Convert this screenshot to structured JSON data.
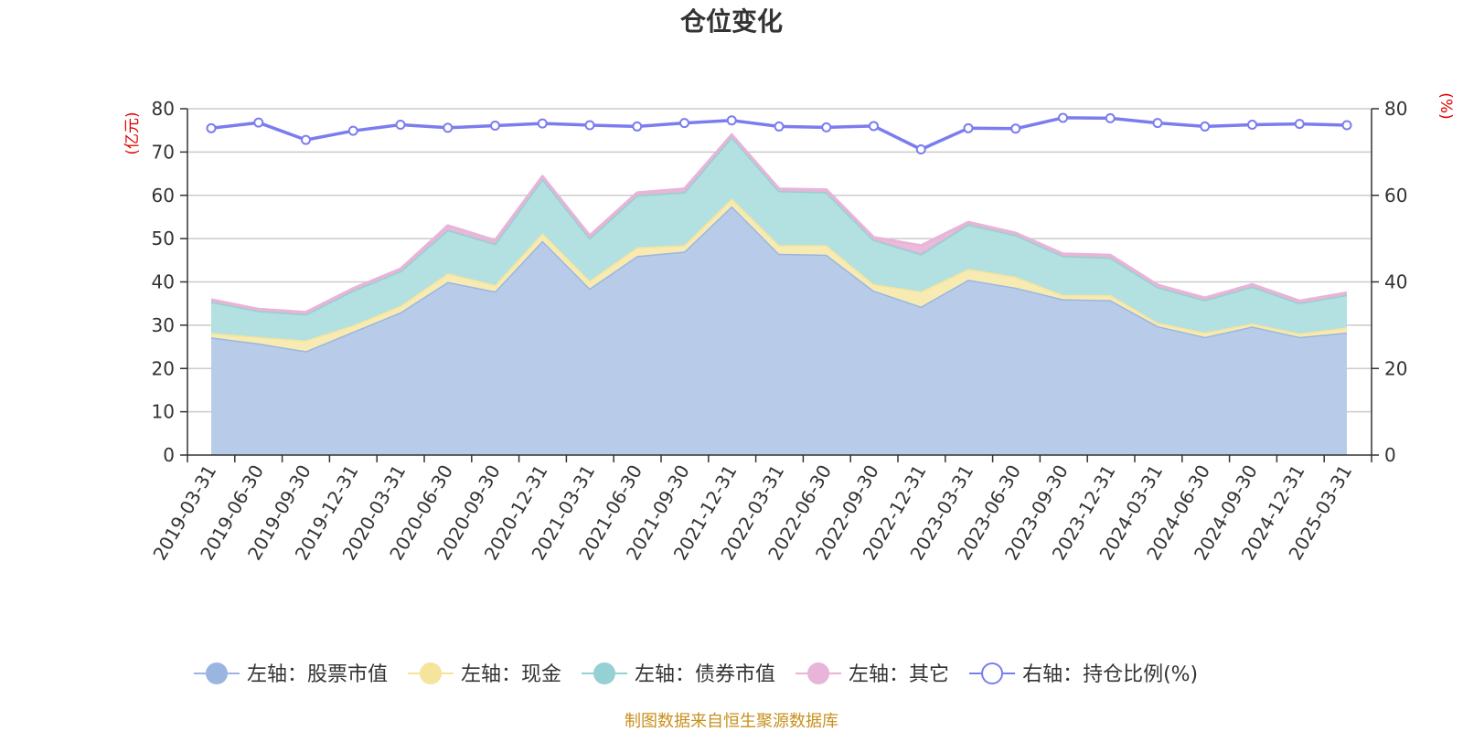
{
  "chart_data": {
    "type": "area",
    "title": "仓位变化",
    "left_unit": "(亿元)",
    "right_unit": "(%)",
    "left_ylim": [
      0,
      80
    ],
    "left_ticks": [
      "0",
      "10",
      "20",
      "30",
      "40",
      "50",
      "60",
      "70",
      "80"
    ],
    "right_ylim": [
      0,
      80
    ],
    "right_ticks": [
      "0",
      "20",
      "40",
      "60",
      "80"
    ],
    "categories": [
      "2019-03-31",
      "2019-06-30",
      "2019-09-30",
      "2019-12-31",
      "2020-03-31",
      "2020-06-30",
      "2020-09-30",
      "2020-12-31",
      "2021-03-31",
      "2021-06-30",
      "2021-09-30",
      "2021-12-31",
      "2022-03-31",
      "2022-06-30",
      "2022-09-30",
      "2022-12-31",
      "2023-03-31",
      "2023-06-30",
      "2023-09-30",
      "2023-12-31",
      "2024-03-31",
      "2024-06-30",
      "2024-09-30",
      "2024-12-31",
      "2025-03-31"
    ],
    "series": [
      {
        "name": "左轴：股票市值",
        "axis": "left",
        "stack": true,
        "color": "#9ab6e0",
        "fill": "#b8cce9",
        "values": [
          27.2,
          25.8,
          24.0,
          28.5,
          33.0,
          40.0,
          37.8,
          49.5,
          38.5,
          46.0,
          47.0,
          57.5,
          46.5,
          46.3,
          38.0,
          34.3,
          40.5,
          38.7,
          36.0,
          35.8,
          29.8,
          27.3,
          29.7,
          27.3,
          28.3
        ]
      },
      {
        "name": "左轴：现金",
        "axis": "left",
        "stack": true,
        "color": "#f5e49b",
        "fill": "#f7eab2",
        "values": [
          1.0,
          1.5,
          2.5,
          1.5,
          1.5,
          2.0,
          1.5,
          1.8,
          1.8,
          2.0,
          1.5,
          1.8,
          2.0,
          2.2,
          1.5,
          3.5,
          2.5,
          2.5,
          1.0,
          1.2,
          0.8,
          1.0,
          0.7,
          0.8,
          1.2
        ]
      },
      {
        "name": "左轴：债券市值",
        "axis": "left",
        "stack": true,
        "color": "#95d1d2",
        "fill": "#b3e0e0",
        "values": [
          7.2,
          6.0,
          6.0,
          8.0,
          8.0,
          10.0,
          9.5,
          12.5,
          9.8,
          12.0,
          12.2,
          14.2,
          12.5,
          12.2,
          10.2,
          8.6,
          10.3,
          9.6,
          9.0,
          8.6,
          8.2,
          7.5,
          8.5,
          7.0,
          7.5
        ]
      },
      {
        "name": "左轴：其它",
        "axis": "left",
        "stack": true,
        "color": "#e8b4d8",
        "fill": "#e8b4d8",
        "values": [
          0.5,
          0.4,
          0.5,
          0.5,
          0.5,
          1.0,
          0.8,
          0.6,
          0.6,
          0.6,
          0.8,
          0.5,
          0.5,
          0.6,
          0.6,
          2.0,
          0.5,
          0.5,
          0.5,
          0.6,
          0.5,
          0.5,
          0.5,
          0.5,
          0.5
        ]
      },
      {
        "name": "右轴：持仓比例(%)",
        "axis": "right",
        "stack": false,
        "color": "#7b7def",
        "values": [
          75.5,
          76.8,
          72.8,
          74.9,
          76.3,
          75.6,
          76.1,
          76.6,
          76.2,
          75.9,
          76.7,
          77.3,
          75.9,
          75.7,
          76.0,
          70.6,
          75.5,
          75.4,
          77.9,
          77.8,
          76.7,
          75.9,
          76.3,
          76.5,
          76.2
        ]
      }
    ]
  },
  "legend": [
    {
      "label": "左轴：股票市值",
      "color": "#9ab6e0",
      "hollow": false
    },
    {
      "label": "左轴：现金",
      "color": "#f5e49b",
      "hollow": false
    },
    {
      "label": "左轴：债券市值",
      "color": "#95d1d2",
      "hollow": false
    },
    {
      "label": "左轴：其它",
      "color": "#e8b4d8",
      "hollow": false
    },
    {
      "label": "右轴：持仓比例(%)",
      "color": "#7b7def",
      "hollow": true
    }
  ],
  "source": "制图数据来自恒生聚源数据库"
}
